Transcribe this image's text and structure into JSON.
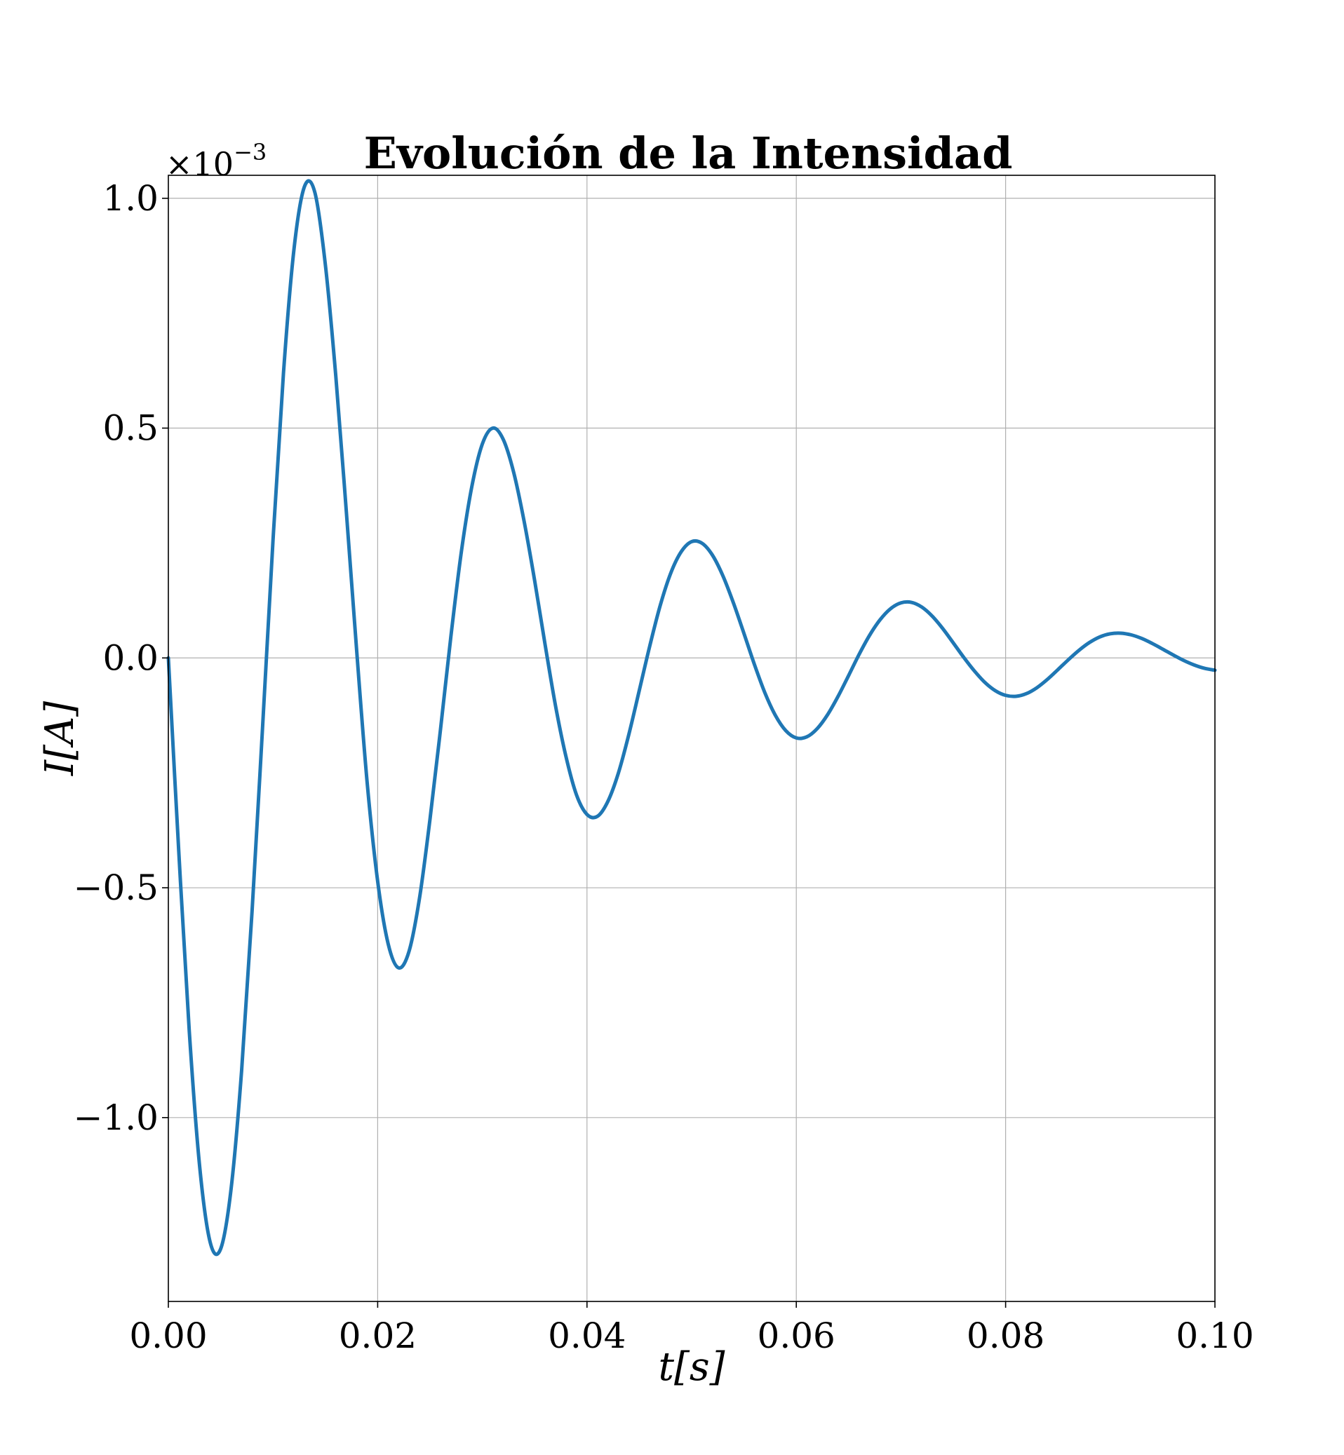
{
  "chart_data": {
    "type": "line",
    "title": "Evolución de la Intensidad",
    "xlabel": "t[s]",
    "ylabel": "I[A]",
    "y_offset_label": "×10",
    "y_offset_exponent": "−3",
    "xlim": [
      0.0,
      0.1
    ],
    "ylim": [
      -1.4,
      1.05
    ],
    "grid": true,
    "x_ticks": [
      0.0,
      0.02,
      0.04,
      0.06,
      0.08,
      0.1
    ],
    "x_tick_labels": [
      "0.00",
      "0.02",
      "0.04",
      "0.06",
      "0.08",
      "0.10"
    ],
    "y_ticks": [
      -1.0,
      -0.5,
      0.0,
      0.5,
      1.0
    ],
    "y_tick_labels": [
      "−1.0",
      "−0.5",
      "0.0",
      "0.5",
      "1.0"
    ],
    "series": [
      {
        "color": "#1f77b4",
        "x": [
          0.0,
          0.001,
          0.002,
          0.003,
          0.004,
          0.005,
          0.006,
          0.007,
          0.008,
          0.009,
          0.01,
          0.011,
          0.012,
          0.013,
          0.014,
          0.015,
          0.016,
          0.017,
          0.018,
          0.019,
          0.02,
          0.021,
          0.022,
          0.023,
          0.024,
          0.025,
          0.026,
          0.027,
          0.028,
          0.029,
          0.03,
          0.031,
          0.032,
          0.033,
          0.034,
          0.035,
          0.036,
          0.037,
          0.038,
          0.039,
          0.04,
          0.041,
          0.042,
          0.043,
          0.044,
          0.045,
          0.046,
          0.047,
          0.048,
          0.049,
          0.05,
          0.051,
          0.052,
          0.053,
          0.054,
          0.055,
          0.056,
          0.057,
          0.058,
          0.059,
          0.06,
          0.061,
          0.062,
          0.063,
          0.064,
          0.065,
          0.066,
          0.067,
          0.068,
          0.069,
          0.07,
          0.071,
          0.072,
          0.073,
          0.074,
          0.075,
          0.076,
          0.077,
          0.078,
          0.079,
          0.08,
          0.081,
          0.082,
          0.083,
          0.084,
          0.085,
          0.086,
          0.087,
          0.088,
          0.089,
          0.09,
          0.091,
          0.092,
          0.093,
          0.094,
          0.095,
          0.096,
          0.097,
          0.098,
          0.099,
          0.1
        ],
        "y": [
          0.0,
          -0.4229,
          -0.8125,
          -1.1084,
          -1.2716,
          -1.2855,
          -1.154,
          -0.898,
          -0.5506,
          -0.152,
          0.2559,
          0.6198,
          0.8884,
          1.0252,
          1.0126,
          0.8558,
          0.613,
          0.3201,
          0.014,
          -0.2723,
          -0.486,
          -0.6218,
          -0.6743,
          -0.6381,
          -0.5223,
          -0.3509,
          -0.1563,
          0.0475,
          0.2316,
          0.3731,
          0.4654,
          0.5,
          0.4753,
          0.4034,
          0.2965,
          0.1682,
          0.0287,
          -0.1049,
          -0.2154,
          -0.2981,
          -0.3405,
          -0.3446,
          -0.3119,
          -0.2505,
          -0.1664,
          -0.0705,
          0.0261,
          0.1143,
          0.1843,
          0.2309,
          0.253,
          0.2494,
          0.2232,
          0.178,
          0.1192,
          0.0532,
          -0.0143,
          -0.0759,
          -0.1249,
          -0.1583,
          -0.1741,
          -0.1717,
          -0.1537,
          -0.1231,
          -0.0832,
          -0.0382,
          0.0077,
          0.0492,
          0.0829,
          0.107,
          0.1198,
          0.1209,
          0.1106,
          0.0907,
          0.0637,
          0.0327,
          0.0012,
          -0.0279,
          -0.0528,
          -0.071,
          -0.0814,
          -0.0835,
          -0.0775,
          -0.0646,
          -0.0465,
          -0.0254,
          -0.0038,
          0.0164,
          0.0334,
          0.0458,
          0.0526,
          0.0539,
          0.0502,
          0.0424,
          0.0316,
          0.0193,
          0.0066,
          -0.0053,
          -0.0152,
          -0.0226,
          -0.0268
        ]
      }
    ]
  }
}
